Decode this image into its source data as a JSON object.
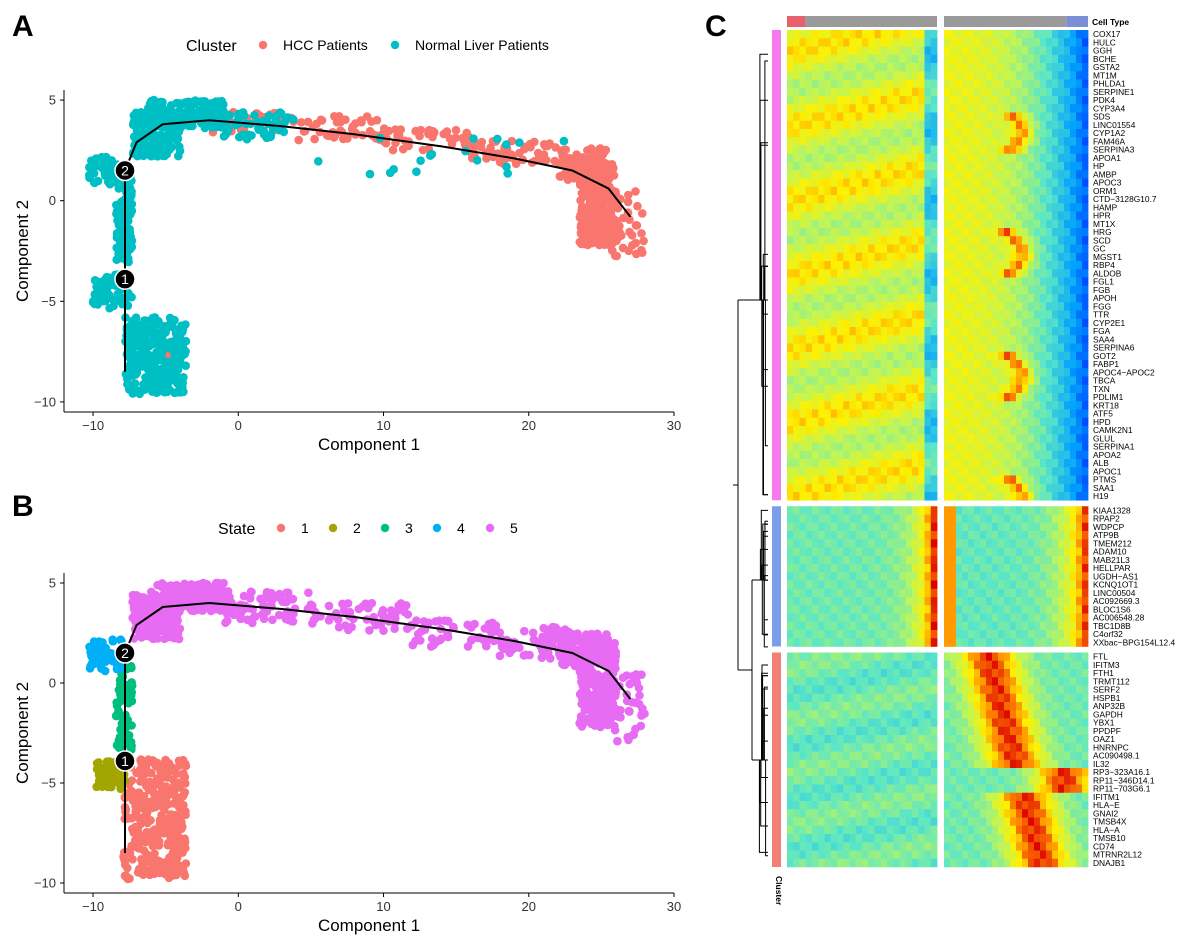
{
  "panels": {
    "A": {
      "label": "A",
      "legend_title": "Cluster",
      "legend": [
        {
          "name": "HCC Patients",
          "color": "#F8766D"
        },
        {
          "name": "Normal Liver Patients",
          "color": "#00BFC4"
        }
      ]
    },
    "B": {
      "label": "B",
      "legend_title": "State",
      "legend": [
        {
          "name": "1",
          "color": "#F8766D"
        },
        {
          "name": "2",
          "color": "#A3A500"
        },
        {
          "name": "3",
          "color": "#00BF7D"
        },
        {
          "name": "4",
          "color": "#00B0F6"
        },
        {
          "name": "5",
          "color": "#E76BF3"
        }
      ]
    },
    "C": {
      "label": "C",
      "celltype_label": "Cell Type",
      "cluster_label": "Cluster"
    }
  },
  "chart_data": [
    {
      "type": "scatter",
      "panel": "A",
      "xlabel": "Component 1",
      "ylabel": "Component 2",
      "xlim": [
        -12,
        30
      ],
      "ylim": [
        -10.5,
        5.5
      ],
      "xticks": [
        -10,
        0,
        10,
        20,
        30
      ],
      "yticks": [
        -10,
        -5,
        0,
        5
      ],
      "grid": false,
      "legend_position": "top",
      "branch_points": [
        {
          "label": "2",
          "x": -7.8,
          "y": 1.5
        },
        {
          "label": "1",
          "x": -7.8,
          "y": -3.9
        }
      ],
      "trajectory": [
        [
          -7.8,
          -8.5
        ],
        [
          -7.8,
          -3.9
        ],
        [
          -7.8,
          -1
        ],
        [
          -7.8,
          1.5
        ],
        [
          -7,
          2.9
        ],
        [
          -5.2,
          3.8
        ],
        [
          -2,
          4.0
        ],
        [
          3,
          3.7
        ],
        [
          8,
          3.3
        ],
        [
          14,
          2.7
        ],
        [
          19,
          2.1
        ],
        [
          23,
          1.5
        ],
        [
          25.5,
          0.6
        ],
        [
          27,
          -0.8
        ]
      ],
      "series": [
        {
          "name": "HCC Patients",
          "color": "#F8766D",
          "regions": [
            {
              "x": [
                -3,
                4
              ],
              "y": [
                3.4,
                4.4
              ],
              "n": 40
            },
            {
              "x": [
                4,
                10
              ],
              "y": [
                3.0,
                4.2
              ],
              "n": 45
            },
            {
              "x": [
                10,
                16
              ],
              "y": [
                2.5,
                3.6
              ],
              "n": 40
            },
            {
              "x": [
                16,
                22
              ],
              "y": [
                1.8,
                3.0
              ],
              "n": 55
            },
            {
              "x": [
                22,
                25.5
              ],
              "y": [
                1.0,
                2.6
              ],
              "n": 80
            },
            {
              "x": [
                23.5,
                26
              ],
              "y": [
                -2.2,
                2.0
              ],
              "n": 260
            },
            {
              "x": [
                25.5,
                28
              ],
              "y": [
                -2.8,
                0.5
              ],
              "n": 40
            },
            {
              "x": [
                -5.2,
                -4.5
              ],
              "y": [
                -7.9,
                -7.2
              ],
              "n": 6
            }
          ]
        },
        {
          "name": "Normal Liver Patients",
          "color": "#00BFC4",
          "regions": [
            {
              "x": [
                -10.3,
                -8.2
              ],
              "y": [
                0.8,
                2.2
              ],
              "n": 50
            },
            {
              "x": [
                -8.4,
                -7.3
              ],
              "y": [
                -3.2,
                1.4
              ],
              "n": 90
            },
            {
              "x": [
                -10,
                -7.3
              ],
              "y": [
                -5.4,
                -3.4
              ],
              "n": 60
            },
            {
              "x": [
                -7.8,
                -3.6
              ],
              "y": [
                -9.6,
                -5.8
              ],
              "n": 260
            },
            {
              "x": [
                -7.3,
                -4.0
              ],
              "y": [
                2.2,
                4.4
              ],
              "n": 160
            },
            {
              "x": [
                -6.2,
                -1.0
              ],
              "y": [
                3.6,
                5.0
              ],
              "n": 150
            },
            {
              "x": [
                -1,
                4
              ],
              "y": [
                3.0,
                4.4
              ],
              "n": 50
            },
            {
              "x": [
                5,
                24
              ],
              "y": [
                1.0,
                3.6
              ],
              "n": 18
            }
          ]
        }
      ]
    },
    {
      "type": "scatter",
      "panel": "B",
      "xlabel": "Component 1",
      "ylabel": "Component 2",
      "xlim": [
        -12,
        30
      ],
      "ylim": [
        -10.5,
        5.5
      ],
      "xticks": [
        -10,
        0,
        10,
        20,
        30
      ],
      "yticks": [
        -10,
        -5,
        0,
        5
      ],
      "grid": false,
      "legend_position": "top",
      "branch_points": [
        {
          "label": "2",
          "x": -7.8,
          "y": 1.5
        },
        {
          "label": "1",
          "x": -7.8,
          "y": -3.9
        }
      ],
      "trajectory": [
        [
          -7.8,
          -8.5
        ],
        [
          -7.8,
          -3.9
        ],
        [
          -7.8,
          -1
        ],
        [
          -7.8,
          1.5
        ],
        [
          -7,
          2.9
        ],
        [
          -5.2,
          3.8
        ],
        [
          -2,
          4.0
        ],
        [
          3,
          3.7
        ],
        [
          8,
          3.3
        ],
        [
          14,
          2.7
        ],
        [
          19,
          2.1
        ],
        [
          23,
          1.5
        ],
        [
          25.5,
          0.6
        ],
        [
          27,
          -0.8
        ]
      ],
      "series": [
        {
          "name": "1",
          "color": "#F8766D",
          "regions": [
            {
              "x": [
                -7.9,
                -3.6
              ],
              "y": [
                -9.8,
                -3.8
              ],
              "n": 330
            }
          ]
        },
        {
          "name": "2",
          "color": "#A3A500",
          "regions": [
            {
              "x": [
                -9.8,
                -7.8
              ],
              "y": [
                -5.4,
                -3.8
              ],
              "n": 70
            }
          ]
        },
        {
          "name": "3",
          "color": "#00BF7D",
          "regions": [
            {
              "x": [
                -8.4,
                -7.3
              ],
              "y": [
                -3.4,
                1.4
              ],
              "n": 90
            }
          ]
        },
        {
          "name": "4",
          "color": "#00B0F6",
          "regions": [
            {
              "x": [
                -10.3,
                -8.0
              ],
              "y": [
                0.6,
                2.2
              ],
              "n": 60
            }
          ]
        },
        {
          "name": "5",
          "color": "#E76BF3",
          "regions": [
            {
              "x": [
                -7.3,
                -4.0
              ],
              "y": [
                2.2,
                4.4
              ],
              "n": 160
            },
            {
              "x": [
                -6.2,
                -1.0
              ],
              "y": [
                3.6,
                5.0
              ],
              "n": 150
            },
            {
              "x": [
                -1,
                5
              ],
              "y": [
                3.0,
                4.6
              ],
              "n": 70
            },
            {
              "x": [
                5,
                12
              ],
              "y": [
                2.6,
                4.0
              ],
              "n": 60
            },
            {
              "x": [
                12,
                18
              ],
              "y": [
                1.8,
                3.2
              ],
              "n": 50
            },
            {
              "x": [
                18,
                23
              ],
              "y": [
                1.2,
                2.8
              ],
              "n": 60
            },
            {
              "x": [
                22,
                25.5
              ],
              "y": [
                0.8,
                2.6
              ],
              "n": 80
            },
            {
              "x": [
                23.5,
                26
              ],
              "y": [
                -2.2,
                2.0
              ],
              "n": 260
            },
            {
              "x": [
                25.5,
                28
              ],
              "y": [
                -3.0,
                0.5
              ],
              "n": 40
            }
          ]
        }
      ]
    },
    {
      "type": "heatmap",
      "panel": "C",
      "celltype_label": "Cell Type",
      "cluster_label": "Cluster",
      "celltype_segments": [
        {
          "side": "left",
          "from": 0,
          "to": 0.12,
          "color": "#E8606A"
        },
        {
          "side": "left",
          "from": 0.12,
          "to": 1,
          "color": "#9A9A9A"
        },
        {
          "side": "right",
          "from": 0,
          "to": 0.85,
          "color": "#9A9A9A"
        },
        {
          "side": "right",
          "from": 0.85,
          "to": 1,
          "color": "#7B8FD8"
        }
      ],
      "clusters": [
        {
          "id": 1,
          "color": "#F47AF0",
          "genes": [
            "COX17",
            "HULC",
            "GGH",
            "BCHE",
            "GSTA2",
            "MT1M",
            "PHLDA1",
            "SERPINE1",
            "PDK4",
            "CYP3A4",
            "SDS",
            "LINC01554",
            "CYP1A2",
            "FAM46A",
            "SERPINA3",
            "APOA1",
            "HP",
            "AMBP",
            "APOC3",
            "ORM1",
            "CTD−3128G10.7",
            "HAMP",
            "HPR",
            "MT1X",
            "HRG",
            "SCD",
            "GC",
            "MGST1",
            "RBP4",
            "ALDOB",
            "FGL1",
            "FGB",
            "APOH",
            "FGG",
            "TTR",
            "CYP2E1",
            "FGA",
            "SAA4",
            "SERPINA6",
            "GOT2",
            "FABP1",
            "APOC4−APOC2",
            "TBCA",
            "TXN",
            "PDLIM1",
            "KRT18",
            "ATF5",
            "HPD",
            "CAMK2N1",
            "GLUL",
            "SERPINA1",
            "APOA2",
            "ALB",
            "APOC1",
            "PTMS",
            "SAA1",
            "H19"
          ]
        },
        {
          "id": 2,
          "color": "#7B9EE8",
          "genes": [
            "KIAA1328",
            "RPAP2",
            "WDPCP",
            "ATP9B",
            "TMEM212",
            "ADAM10",
            "MAB21L3",
            "HELLPAR",
            "UGDH−AS1",
            "KCNQ1OT1",
            "LINC00504",
            "AC092669.3",
            "BLOC1S6",
            "AC006548.28",
            "TBC1D8B",
            "C4orf32",
            "XXbac−BPG154L12.4"
          ]
        },
        {
          "id": 3,
          "color": "#F47F76",
          "genes": [
            "FTL",
            "IFITM3",
            "FTH1",
            "TRMT112",
            "SERF2",
            "HSPB1",
            "ANP32B",
            "GAPDH",
            "YBX1",
            "PPDPF",
            "OAZ1",
            "HNRNPC",
            "AC090498.1",
            "IL32",
            "RP3−323A16.1",
            "RP11−346D14.1",
            "RP11−703G6.1",
            "IFITM1",
            "HLA−E",
            "GNAI2",
            "TMSB4X",
            "HLA−A",
            "TMSB10",
            "CD74",
            "MTRNR2L12",
            "DNAJB1"
          ]
        }
      ]
    }
  ]
}
